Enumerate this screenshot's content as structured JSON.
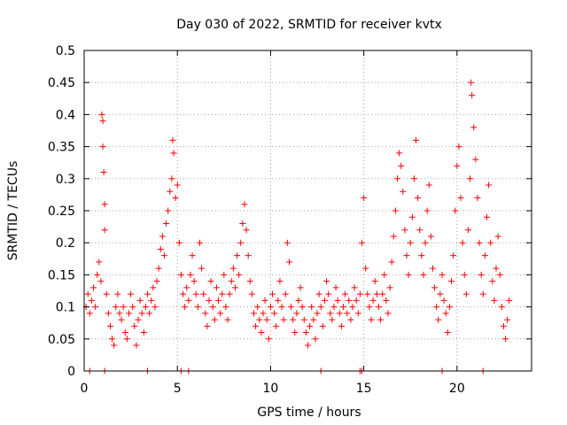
{
  "chart_data": {
    "type": "scatter",
    "title": "Day 030 of 2022, SRMTID for receiver kvtx",
    "xlabel": "GPS time / hours",
    "ylabel": "SRMTID / TECUs",
    "xlim": [
      0,
      24
    ],
    "ylim": [
      0,
      0.5
    ],
    "x_ticks": [
      0,
      5,
      10,
      15,
      20
    ],
    "x_tick_labels": [
      "0",
      "5",
      "10",
      "15",
      "20"
    ],
    "y_ticks": [
      0,
      0.05,
      0.1,
      0.15,
      0.2,
      0.25,
      0.3,
      0.35,
      0.4,
      0.45,
      0.5
    ],
    "y_tick_labels": [
      "0",
      "0.05",
      "0.1",
      "0.15",
      "0.2",
      "0.25",
      "0.3",
      "0.35",
      "0.4",
      "0.45",
      "0.5"
    ],
    "grid": true,
    "marker": "plus",
    "series": [
      {
        "name": "SRMTID",
        "color": "#ff0000",
        "points": [
          [
            0.1,
            0.1
          ],
          [
            0.2,
            0.12
          ],
          [
            0.3,
            0.09
          ],
          [
            0.4,
            0.11
          ],
          [
            0.5,
            0.13
          ],
          [
            0.6,
            0.1
          ],
          [
            0.7,
            0.15
          ],
          [
            0.8,
            0.17
          ],
          [
            0.9,
            0.14
          ],
          [
            0.95,
            0.4
          ],
          [
            1.0,
            0.39
          ],
          [
            1.0,
            0.35
          ],
          [
            1.05,
            0.31
          ],
          [
            1.1,
            0.26
          ],
          [
            1.1,
            0.22
          ],
          [
            1.2,
            0.12
          ],
          [
            1.3,
            0.09
          ],
          [
            1.4,
            0.07
          ],
          [
            1.5,
            0.05
          ],
          [
            1.6,
            0.04
          ],
          [
            1.7,
            0.1
          ],
          [
            1.8,
            0.12
          ],
          [
            1.9,
            0.09
          ],
          [
            2.0,
            0.08
          ],
          [
            2.1,
            0.1
          ],
          [
            2.2,
            0.06
          ],
          [
            2.3,
            0.05
          ],
          [
            2.4,
            0.09
          ],
          [
            2.5,
            0.12
          ],
          [
            2.6,
            0.1
          ],
          [
            2.7,
            0.07
          ],
          [
            2.8,
            0.04
          ],
          [
            2.9,
            0.08
          ],
          [
            3.0,
            0.11
          ],
          [
            3.1,
            0.09
          ],
          [
            3.2,
            0.06
          ],
          [
            3.3,
            0.1
          ],
          [
            3.4,
            0.12
          ],
          [
            3.5,
            0.09
          ],
          [
            3.6,
            0.11
          ],
          [
            3.7,
            0.13
          ],
          [
            3.8,
            0.1
          ],
          [
            3.9,
            0.14
          ],
          [
            4.0,
            0.16
          ],
          [
            4.1,
            0.19
          ],
          [
            4.2,
            0.21
          ],
          [
            4.3,
            0.18
          ],
          [
            4.4,
            0.23
          ],
          [
            4.5,
            0.25
          ],
          [
            4.6,
            0.28
          ],
          [
            4.7,
            0.3
          ],
          [
            4.75,
            0.36
          ],
          [
            4.8,
            0.34
          ],
          [
            4.9,
            0.27
          ],
          [
            5.0,
            0.29
          ],
          [
            5.1,
            0.2
          ],
          [
            5.2,
            0.15
          ],
          [
            5.3,
            0.12
          ],
          [
            5.4,
            0.1
          ],
          [
            5.5,
            0.13
          ],
          [
            5.6,
            0.11
          ],
          [
            5.7,
            0.15
          ],
          [
            5.8,
            0.18
          ],
          [
            5.9,
            0.14
          ],
          [
            6.0,
            0.12
          ],
          [
            6.1,
            0.1
          ],
          [
            6.2,
            0.2
          ],
          [
            6.3,
            0.16
          ],
          [
            6.4,
            0.12
          ],
          [
            6.5,
            0.09
          ],
          [
            6.6,
            0.07
          ],
          [
            6.7,
            0.11
          ],
          [
            6.8,
            0.14
          ],
          [
            6.9,
            0.1
          ],
          [
            7.0,
            0.08
          ],
          [
            7.1,
            0.13
          ],
          [
            7.2,
            0.11
          ],
          [
            7.3,
            0.09
          ],
          [
            7.4,
            0.12
          ],
          [
            7.5,
            0.15
          ],
          [
            7.6,
            0.1
          ],
          [
            7.7,
            0.08
          ],
          [
            7.8,
            0.12
          ],
          [
            7.9,
            0.14
          ],
          [
            8.0,
            0.16
          ],
          [
            8.1,
            0.13
          ],
          [
            8.2,
            0.18
          ],
          [
            8.3,
            0.15
          ],
          [
            8.4,
            0.2
          ],
          [
            8.5,
            0.23
          ],
          [
            8.6,
            0.26
          ],
          [
            8.7,
            0.22
          ],
          [
            8.8,
            0.18
          ],
          [
            8.9,
            0.14
          ],
          [
            9.0,
            0.12
          ],
          [
            9.1,
            0.09
          ],
          [
            9.2,
            0.07
          ],
          [
            9.3,
            0.1
          ],
          [
            9.4,
            0.08
          ],
          [
            9.5,
            0.06
          ],
          [
            9.6,
            0.09
          ],
          [
            9.7,
            0.11
          ],
          [
            9.8,
            0.08
          ],
          [
            9.9,
            0.05
          ],
          [
            10.0,
            0.1
          ],
          [
            10.1,
            0.12
          ],
          [
            10.2,
            0.09
          ],
          [
            10.3,
            0.07
          ],
          [
            10.4,
            0.11
          ],
          [
            10.5,
            0.14
          ],
          [
            10.6,
            0.1
          ],
          [
            10.7,
            0.08
          ],
          [
            10.8,
            0.12
          ],
          [
            10.9,
            0.2
          ],
          [
            11.0,
            0.17
          ],
          [
            11.1,
            0.1
          ],
          [
            11.2,
            0.08
          ],
          [
            11.3,
            0.06
          ],
          [
            11.4,
            0.09
          ],
          [
            11.5,
            0.11
          ],
          [
            11.6,
            0.13
          ],
          [
            11.7,
            0.1
          ],
          [
            11.8,
            0.08
          ],
          [
            11.9,
            0.06
          ],
          [
            12.0,
            0.04
          ],
          [
            12.1,
            0.07
          ],
          [
            12.2,
            0.1
          ],
          [
            12.3,
            0.08
          ],
          [
            12.4,
            0.05
          ],
          [
            12.5,
            0.09
          ],
          [
            12.6,
            0.12
          ],
          [
            12.7,
            0.1
          ],
          [
            12.8,
            0.07
          ],
          [
            12.9,
            0.11
          ],
          [
            13.0,
            0.14
          ],
          [
            13.1,
            0.12
          ],
          [
            13.2,
            0.09
          ],
          [
            13.3,
            0.08
          ],
          [
            13.4,
            0.1
          ],
          [
            13.5,
            0.13
          ],
          [
            13.6,
            0.11
          ],
          [
            13.7,
            0.09
          ],
          [
            13.8,
            0.07
          ],
          [
            13.9,
            0.1
          ],
          [
            14.0,
            0.12
          ],
          [
            14.1,
            0.09
          ],
          [
            14.2,
            0.11
          ],
          [
            14.3,
            0.08
          ],
          [
            14.4,
            0.1
          ],
          [
            14.5,
            0.13
          ],
          [
            14.6,
            0.11
          ],
          [
            14.7,
            0.09
          ],
          [
            14.8,
            0.12
          ],
          [
            14.9,
            0.2
          ],
          [
            15.0,
            0.27
          ],
          [
            15.1,
            0.16
          ],
          [
            15.2,
            0.12
          ],
          [
            15.3,
            0.1
          ],
          [
            15.4,
            0.08
          ],
          [
            15.5,
            0.11
          ],
          [
            15.6,
            0.14
          ],
          [
            15.7,
            0.12
          ],
          [
            15.8,
            0.1
          ],
          [
            15.9,
            0.08
          ],
          [
            16.0,
            0.12
          ],
          [
            16.1,
            0.15
          ],
          [
            16.2,
            0.11
          ],
          [
            16.3,
            0.09
          ],
          [
            16.4,
            0.13
          ],
          [
            16.5,
            0.17
          ],
          [
            16.6,
            0.21
          ],
          [
            16.7,
            0.25
          ],
          [
            16.8,
            0.3
          ],
          [
            16.9,
            0.34
          ],
          [
            17.0,
            0.32
          ],
          [
            17.1,
            0.28
          ],
          [
            17.2,
            0.22
          ],
          [
            17.3,
            0.18
          ],
          [
            17.4,
            0.15
          ],
          [
            17.5,
            0.2
          ],
          [
            17.6,
            0.24
          ],
          [
            17.7,
            0.3
          ],
          [
            17.8,
            0.36
          ],
          [
            17.9,
            0.27
          ],
          [
            18.0,
            0.22
          ],
          [
            18.1,
            0.18
          ],
          [
            18.2,
            0.15
          ],
          [
            18.3,
            0.2
          ],
          [
            18.4,
            0.25
          ],
          [
            18.5,
            0.29
          ],
          [
            18.6,
            0.21
          ],
          [
            18.7,
            0.16
          ],
          [
            18.8,
            0.13
          ],
          [
            18.9,
            0.1
          ],
          [
            19.0,
            0.08
          ],
          [
            19.1,
            0.12
          ],
          [
            19.2,
            0.15
          ],
          [
            19.3,
            0.11
          ],
          [
            19.4,
            0.09
          ],
          [
            19.5,
            0.06
          ],
          [
            19.6,
            0.1
          ],
          [
            19.7,
            0.14
          ],
          [
            19.8,
            0.18
          ],
          [
            19.9,
            0.25
          ],
          [
            20.0,
            0.32
          ],
          [
            20.1,
            0.35
          ],
          [
            20.2,
            0.27
          ],
          [
            20.3,
            0.2
          ],
          [
            20.4,
            0.15
          ],
          [
            20.5,
            0.12
          ],
          [
            20.6,
            0.22
          ],
          [
            20.7,
            0.3
          ],
          [
            20.75,
            0.45
          ],
          [
            20.8,
            0.43
          ],
          [
            20.9,
            0.38
          ],
          [
            21.0,
            0.33
          ],
          [
            21.1,
            0.27
          ],
          [
            21.2,
            0.2
          ],
          [
            21.3,
            0.15
          ],
          [
            21.4,
            0.12
          ],
          [
            21.5,
            0.18
          ],
          [
            21.6,
            0.24
          ],
          [
            21.7,
            0.29
          ],
          [
            21.8,
            0.2
          ],
          [
            21.9,
            0.14
          ],
          [
            22.0,
            0.11
          ],
          [
            22.1,
            0.16
          ],
          [
            22.2,
            0.21
          ],
          [
            22.3,
            0.15
          ],
          [
            22.4,
            0.1
          ],
          [
            22.5,
            0.07
          ],
          [
            22.6,
            0.05
          ],
          [
            22.7,
            0.08
          ],
          [
            22.8,
            0.11
          ]
        ]
      },
      {
        "name": "zero-values",
        "color": "#ff0000",
        "points": [
          [
            0.3,
            0
          ],
          [
            1.1,
            0
          ],
          [
            3.4,
            0
          ],
          [
            5.2,
            0
          ],
          [
            5.6,
            0
          ],
          [
            12.7,
            0
          ],
          [
            14.8,
            0
          ],
          [
            14.9,
            0
          ],
          [
            19.2,
            0
          ],
          [
            21.4,
            0
          ]
        ]
      }
    ]
  }
}
